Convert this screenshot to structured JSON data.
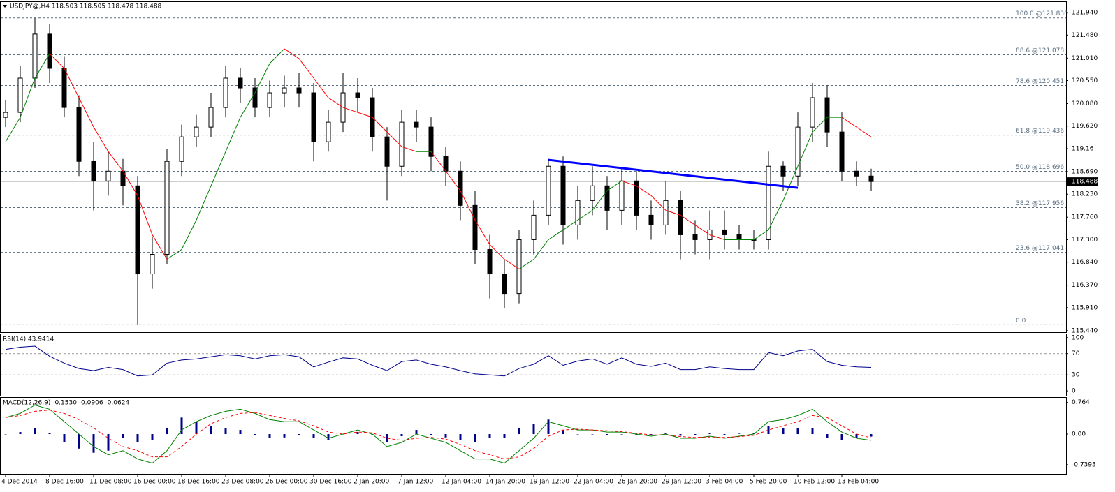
{
  "chart_data": [
    {
      "type": "candlestick",
      "title": "USDJPY@,H4  118.503 118.505 118.478 118.488",
      "categories": [
        "4 Dec 2014",
        null,
        null,
        "8 Dec 16:00",
        null,
        null,
        "11 Dec 08:00",
        null,
        null,
        "16 Dec 00:00",
        null,
        null,
        "18 Dec 16:00",
        null,
        null,
        "23 Dec 08:00",
        null,
        null,
        "26 Dec 00:00",
        null,
        null,
        "30 Dec 16:00",
        null,
        null,
        "2 Jan 20:00",
        null,
        null,
        "7 Jan 12:00",
        null,
        null,
        "12 Jan 04:00",
        null,
        null,
        "14 Jan 20:00",
        null,
        null,
        "19 Jan 12:00",
        null,
        null,
        "22 Jan 04:00",
        null,
        null,
        "26 Jan 20:00",
        null,
        null,
        "29 Jan 12:00",
        null,
        null,
        "3 Feb 04:00",
        null,
        null,
        "5 Feb 20:00",
        null,
        null,
        "10 Feb 12:00",
        null,
        null,
        "13 Feb 04:00",
        null,
        null
      ],
      "open": [
        119.8,
        119.9,
        120.6,
        121.5,
        120.8,
        120.0,
        118.9,
        118.5,
        118.7,
        118.4,
        116.6,
        117.0,
        118.9,
        119.4,
        119.6,
        120.0,
        120.6,
        120.4,
        120.0,
        120.3,
        120.4,
        120.3,
        119.3,
        119.7,
        120.3,
        120.2,
        119.4,
        118.8,
        119.7,
        119.6,
        119.0,
        118.7,
        118.0,
        117.1,
        116.6,
        116.2,
        117.3,
        117.8,
        118.8,
        117.6,
        118.1,
        118.4,
        117.9,
        118.5,
        117.8,
        117.6,
        118.1,
        117.4,
        117.3,
        117.5,
        117.4,
        117.3,
        117.3,
        118.8,
        118.6,
        119.6,
        120.2,
        119.5,
        118.7,
        118.6
      ],
      "high": [
        120.15,
        120.85,
        121.83,
        121.7,
        121.05,
        120.25,
        119.3,
        119.1,
        118.95,
        118.6,
        117.35,
        119.15,
        119.65,
        119.85,
        120.3,
        120.85,
        120.8,
        120.6,
        120.55,
        120.65,
        120.7,
        120.5,
        119.95,
        120.7,
        120.6,
        120.4,
        119.6,
        119.95,
        119.95,
        119.8,
        119.2,
        118.9,
        118.3,
        117.4,
        116.9,
        117.5,
        118.1,
        118.95,
        119.0,
        118.4,
        118.8,
        118.6,
        118.75,
        118.7,
        118.1,
        118.5,
        118.3,
        117.7,
        117.9,
        117.9,
        117.6,
        117.5,
        119.1,
        118.9,
        119.9,
        120.5,
        120.45,
        119.9,
        118.9,
        118.75
      ],
      "low": [
        119.6,
        119.7,
        120.4,
        120.5,
        119.8,
        118.6,
        117.9,
        118.2,
        118.0,
        115.57,
        116.3,
        116.8,
        118.6,
        119.2,
        119.4,
        119.8,
        120.1,
        119.8,
        119.8,
        120.0,
        120.0,
        118.9,
        119.1,
        119.5,
        119.9,
        119.1,
        118.1,
        118.6,
        119.3,
        118.7,
        118.4,
        117.7,
        116.8,
        116.1,
        115.9,
        116.0,
        117.0,
        117.6,
        117.2,
        117.3,
        117.8,
        117.5,
        117.6,
        117.5,
        117.3,
        117.4,
        116.9,
        117.0,
        116.9,
        117.1,
        117.1,
        117.1,
        117.1,
        118.3,
        118.4,
        119.3,
        119.2,
        118.5,
        118.4,
        118.3
      ],
      "close": [
        119.9,
        120.6,
        121.5,
        120.8,
        120.0,
        118.9,
        118.5,
        118.7,
        118.4,
        116.6,
        117.0,
        118.9,
        119.4,
        119.6,
        120.0,
        120.6,
        120.4,
        120.0,
        120.3,
        120.4,
        120.3,
        119.3,
        119.7,
        120.3,
        120.2,
        119.4,
        118.8,
        119.7,
        119.6,
        119.0,
        118.7,
        118.0,
        117.1,
        116.6,
        116.2,
        117.3,
        117.8,
        118.8,
        117.6,
        118.1,
        118.4,
        117.9,
        118.5,
        117.8,
        117.6,
        118.1,
        117.4,
        117.3,
        117.5,
        117.4,
        117.3,
        117.3,
        118.8,
        118.6,
        119.6,
        120.2,
        119.5,
        118.7,
        118.6,
        118.488
      ],
      "candle_color": "#000000",
      "up_fill": "#ffffff",
      "down_fill": "#000000",
      "ma": {
        "up_color": "#008000",
        "down_color": "#ff0000",
        "values": [
          119.3,
          119.8,
          120.6,
          121.1,
          120.8,
          120.2,
          119.6,
          119.1,
          118.7,
          118.2,
          117.4,
          116.9,
          117.1,
          117.7,
          118.4,
          119.1,
          119.8,
          120.3,
          120.9,
          121.2,
          121.0,
          120.6,
          120.2,
          120.0,
          119.9,
          119.8,
          119.5,
          119.2,
          119.1,
          119.1,
          118.7,
          118.3,
          117.7,
          117.2,
          116.9,
          116.7,
          116.9,
          117.3,
          117.5,
          117.7,
          117.9,
          118.3,
          118.5,
          118.4,
          118.2,
          117.9,
          117.8,
          117.6,
          117.4,
          117.3,
          117.3,
          117.3,
          117.5,
          118.1,
          118.8,
          119.5,
          119.8,
          119.8,
          119.6,
          119.4
        ]
      },
      "fib": [
        {
          "label": "100.0  @121.830",
          "value": 121.83
        },
        {
          "label": "88.6  @121.078",
          "value": 121.078
        },
        {
          "label": "78.6  @120.451",
          "value": 120.451
        },
        {
          "label": "61.8  @119.436",
          "value": 119.436
        },
        {
          "label": "50.0  @118.696",
          "value": 118.696
        },
        {
          "label": "38.2  @117.956",
          "value": 117.956
        },
        {
          "label": "23.6  @117.041",
          "value": 117.041
        },
        {
          "label": "0.0",
          "value": 115.562
        }
      ],
      "fib_color": "#5a6e80",
      "trendline": {
        "start": [
          37,
          118.93
        ],
        "end": [
          54,
          118.36
        ],
        "color": "#0000ff"
      },
      "last_price": 118.488,
      "ylim": [
        115.41,
        122.14
      ],
      "yticks": [
        {
          "value": 121.94,
          "label": "121.940"
        },
        {
          "value": 121.48,
          "label": "121.480"
        },
        {
          "value": 121.01,
          "label": "121.010"
        },
        {
          "value": 120.55,
          "label": "120.550"
        },
        {
          "value": 120.08,
          "label": "120.080"
        },
        {
          "value": 119.62,
          "label": "119.620"
        },
        119.16,
        {
          "value": 118.69,
          "label": "118.690"
        },
        {
          "value": 118.23,
          "label": "118.230"
        },
        {
          "value": 117.76,
          "label": "117.760"
        },
        {
          "value": 117.3,
          "label": "117.300"
        },
        {
          "value": 116.84,
          "label": "116.840"
        },
        {
          "value": 116.37,
          "label": "116.370"
        },
        {
          "value": 115.91,
          "label": "115.910"
        },
        {
          "value": 115.44,
          "label": "115.440"
        }
      ]
    },
    {
      "type": "line",
      "title": "RSI(14) 43.9414",
      "color": "#00008b",
      "values": [
        78,
        82,
        84,
        65,
        52,
        42,
        38,
        44,
        40,
        28,
        30,
        52,
        58,
        60,
        64,
        68,
        66,
        60,
        66,
        68,
        64,
        45,
        54,
        62,
        60,
        48,
        38,
        55,
        58,
        50,
        45,
        38,
        32,
        30,
        28,
        42,
        50,
        66,
        48,
        56,
        60,
        50,
        62,
        50,
        46,
        52,
        40,
        40,
        45,
        42,
        40,
        40,
        72,
        66,
        75,
        78,
        55,
        48,
        45,
        44
      ],
      "levels": [
        30,
        70
      ],
      "ylim": [
        -9,
        105
      ],
      "yticks": [
        0,
        30,
        70,
        100
      ]
    },
    {
      "type": "macd",
      "title": "MACD(12,26,9) -0.1530 -0.0906 -0.0624",
      "histogram": {
        "color": "#00008b",
        "values": [
          0,
          0.05,
          0.15,
          0.02,
          -0.2,
          -0.35,
          -0.45,
          -0.4,
          -0.1,
          -0.2,
          -0.15,
          0.15,
          0.4,
          0.3,
          0.2,
          0.15,
          0.1,
          -0.02,
          -0.1,
          -0.08,
          -0.02,
          -0.1,
          -0.15,
          0,
          0.05,
          -0.03,
          -0.2,
          -0.05,
          0.1,
          -0.02,
          -0.08,
          -0.15,
          -0.2,
          -0.1,
          -0.1,
          0.15,
          0.25,
          0.35,
          0.1,
          0,
          0,
          -0.03,
          -0.01,
          -0.02,
          -0.03,
          0.02,
          -0.04,
          -0.02,
          0.02,
          -0.02,
          0.01,
          0.03,
          0.2,
          0.15,
          0.15,
          0.15,
          -0.1,
          -0.15,
          -0.1,
          -0.06
        ]
      },
      "main": {
        "color": "#008000",
        "values": [
          0.4,
          0.5,
          0.7,
          0.6,
          0.3,
          0,
          -0.3,
          -0.5,
          -0.4,
          -0.6,
          -0.7,
          -0.4,
          0.1,
          0.3,
          0.45,
          0.55,
          0.6,
          0.5,
          0.35,
          0.3,
          0.3,
          0.1,
          -0.1,
          0,
          0.1,
          0,
          -0.3,
          -0.2,
          0,
          -0.1,
          -0.2,
          -0.4,
          -0.6,
          -0.6,
          -0.7,
          -0.4,
          -0.1,
          0.3,
          0.2,
          0.1,
          0.1,
          0.05,
          0.05,
          0,
          -0.05,
          0,
          -0.1,
          -0.1,
          -0.05,
          -0.1,
          -0.05,
          0,
          0.3,
          0.35,
          0.45,
          0.6,
          0.3,
          0.05,
          -0.1,
          -0.15
        ]
      },
      "signal": {
        "color": "#ff0000",
        "values": [
          0.4,
          0.45,
          0.55,
          0.58,
          0.5,
          0.35,
          0.15,
          -0.1,
          -0.3,
          -0.4,
          -0.55,
          -0.55,
          -0.3,
          0,
          0.25,
          0.4,
          0.5,
          0.52,
          0.45,
          0.38,
          0.32,
          0.2,
          0.05,
          0,
          0.05,
          0.03,
          -0.1,
          -0.15,
          -0.1,
          -0.08,
          -0.12,
          -0.25,
          -0.4,
          -0.5,
          -0.6,
          -0.55,
          -0.35,
          -0.05,
          0.1,
          0.12,
          0.1,
          0.08,
          0.06,
          0.02,
          -0.02,
          -0.02,
          -0.06,
          -0.08,
          -0.07,
          -0.08,
          -0.06,
          -0.03,
          0.1,
          0.2,
          0.3,
          0.45,
          0.4,
          0.2,
          0,
          -0.09
        ]
      },
      "ylim": [
        -0.96,
        0.86
      ],
      "yticks": [
        0.764,
        {
          "value": 0,
          "label": "0.00"
        },
        -0.7393
      ]
    }
  ]
}
